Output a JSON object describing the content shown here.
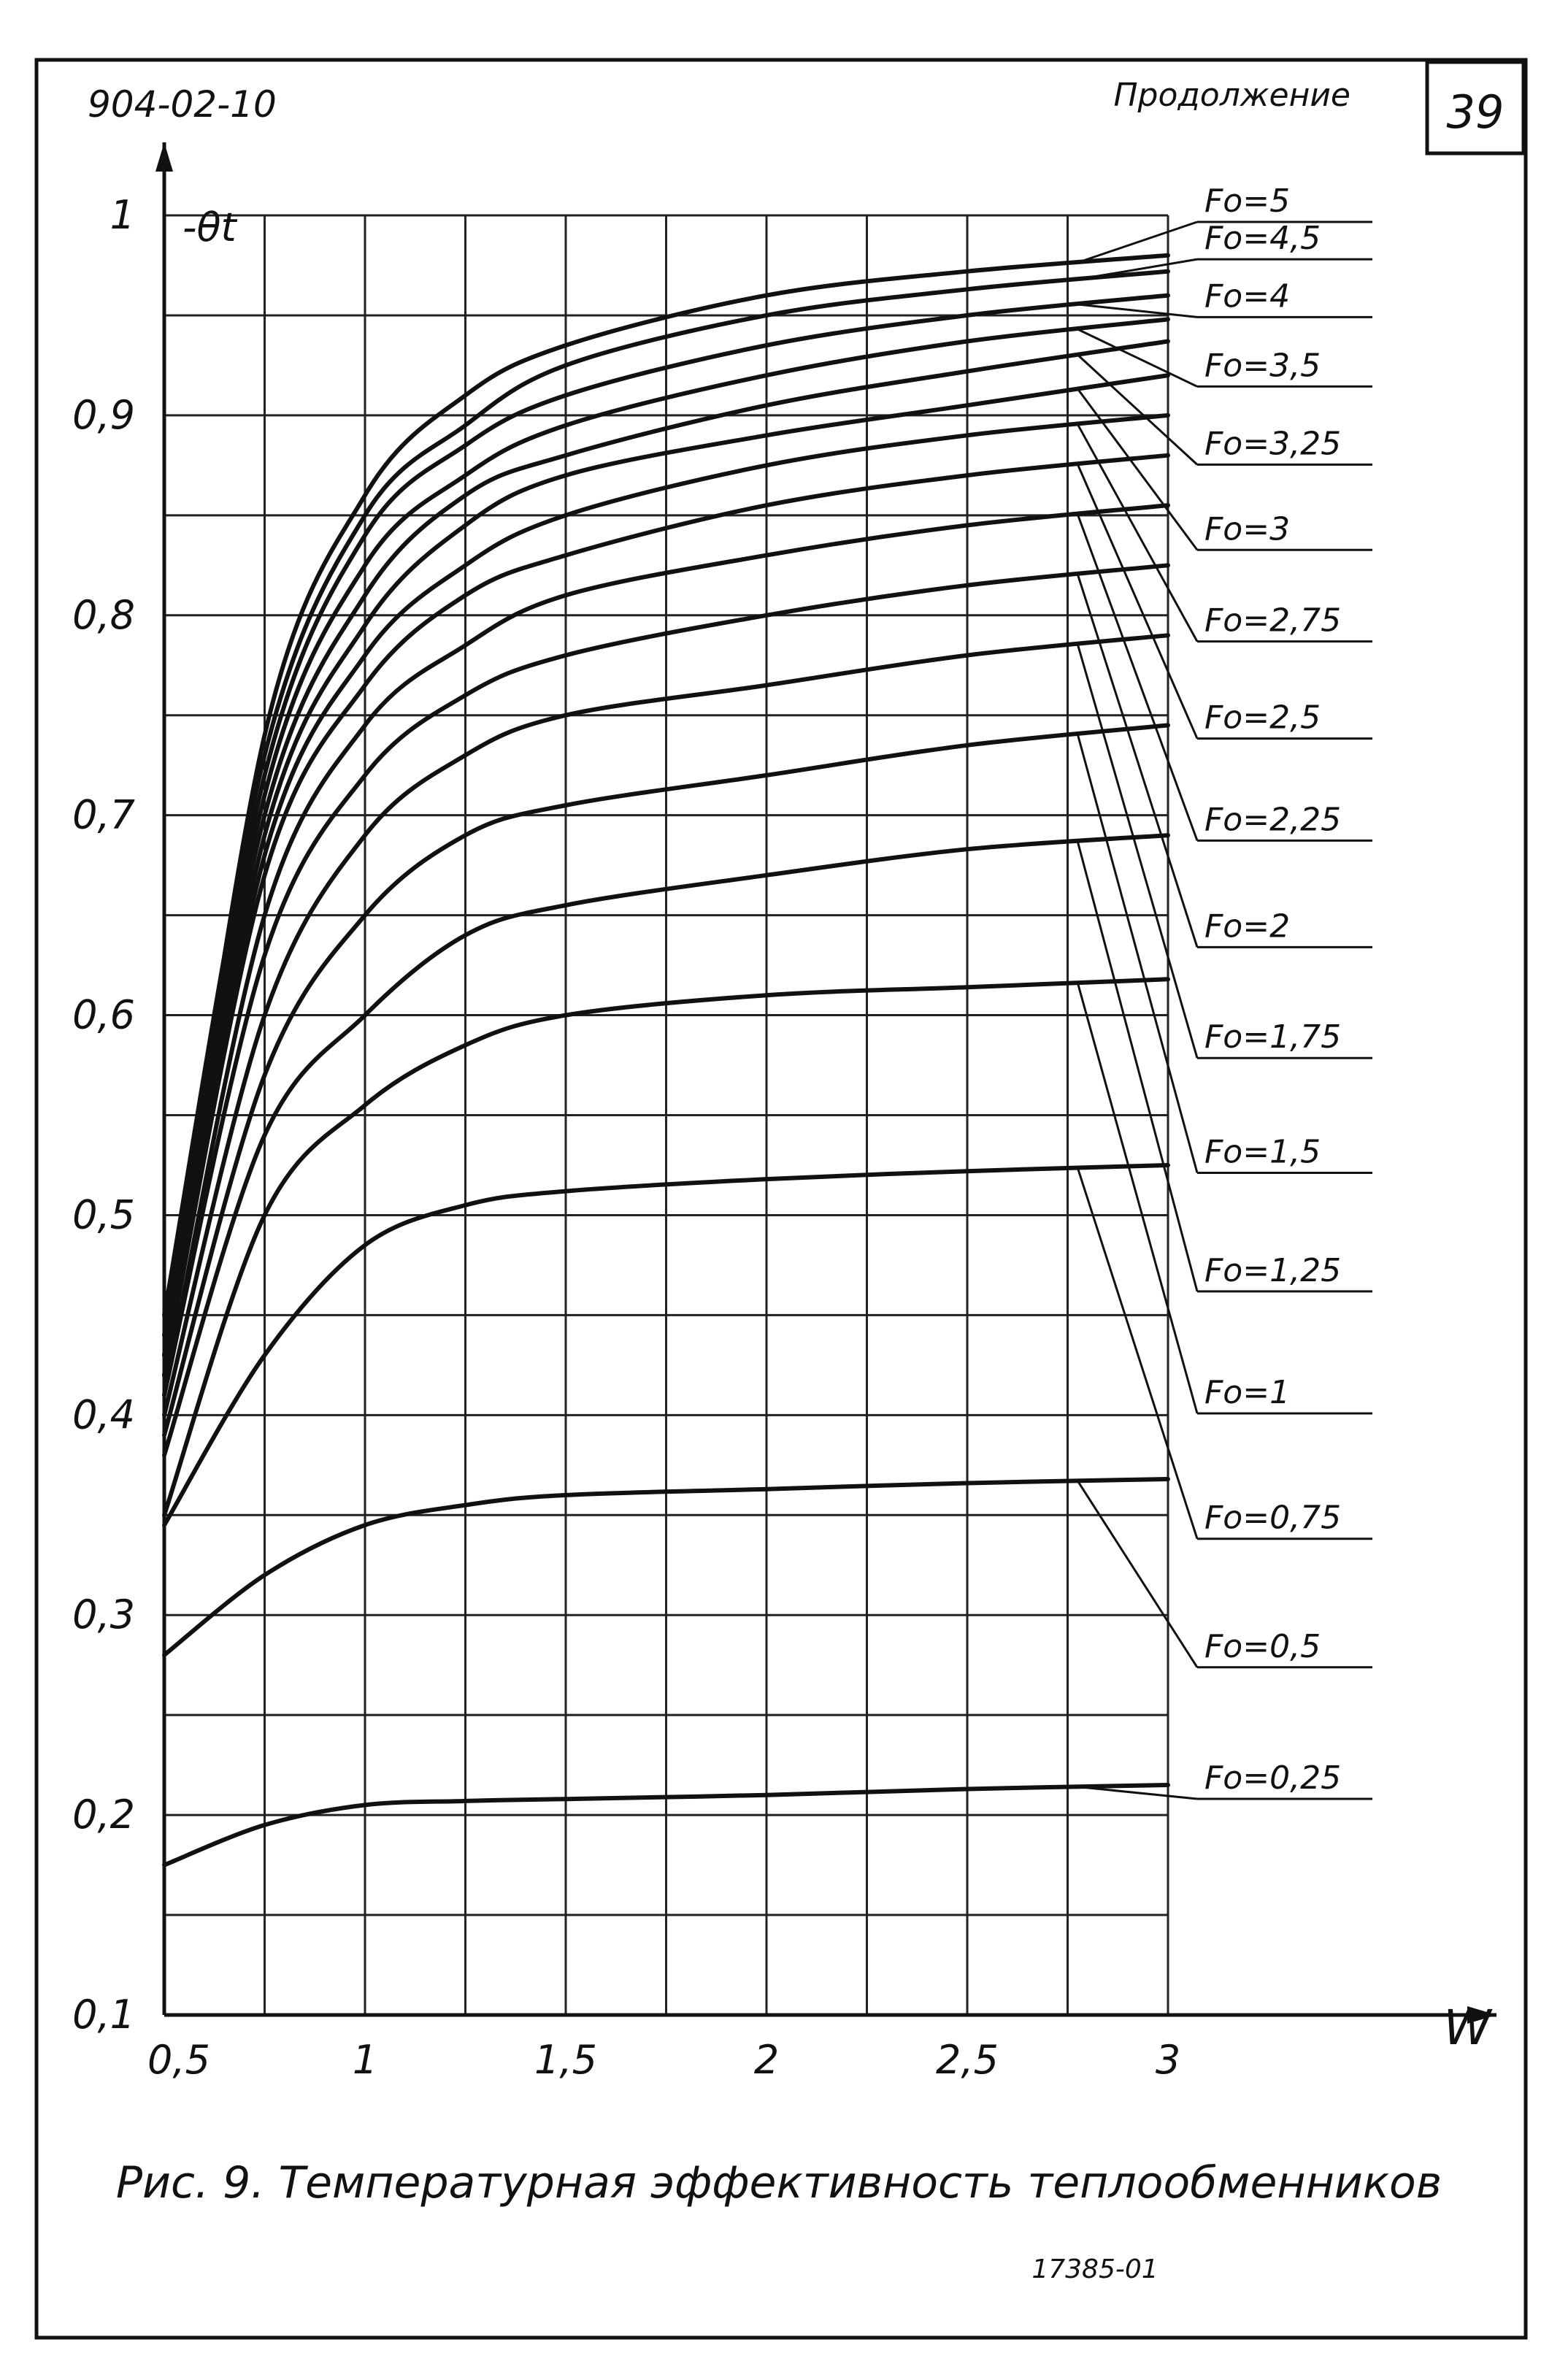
{
  "header": {
    "doc_number": "904-02-10",
    "continuation": "Продолжение",
    "page_number": "39"
  },
  "footer": {
    "caption": "Рис. 9. Температурная эффективность теплообменников",
    "inventory_number": "17385-01"
  },
  "chart_data": {
    "type": "line",
    "title": "",
    "xlabel": "W",
    "ylabel": "-θt",
    "xlim": [
      0.5,
      3
    ],
    "ylim": [
      0.1,
      1
    ],
    "grid": true,
    "legend": "right, labels with leader lines",
    "x_ticks": [
      {
        "value": 0.5,
        "label": "0,5"
      },
      {
        "value": 1,
        "label": "1"
      },
      {
        "value": 1.5,
        "label": "1,5"
      },
      {
        "value": 2,
        "label": "2"
      },
      {
        "value": 2.5,
        "label": "2,5"
      },
      {
        "value": 3,
        "label": "3"
      }
    ],
    "y_ticks": [
      {
        "value": 0.1,
        "label": "0,1"
      },
      {
        "value": 0.2,
        "label": "0,2"
      },
      {
        "value": 0.3,
        "label": "0,3"
      },
      {
        "value": 0.4,
        "label": "0,4"
      },
      {
        "value": 0.5,
        "label": "0,5"
      },
      {
        "value": 0.6,
        "label": "0,6"
      },
      {
        "value": 0.7,
        "label": "0,7"
      },
      {
        "value": 0.8,
        "label": "0,8"
      },
      {
        "value": 0.9,
        "label": "0,9"
      },
      {
        "value": 1,
        "label": "1"
      }
    ],
    "x": [
      0.5,
      0.75,
      1,
      1.25,
      1.5,
      2,
      2.5,
      3
    ],
    "series": [
      {
        "name": "Fo=5",
        "values": [
          0.43,
          0.74,
          0.86,
          0.91,
          0.935,
          0.96,
          0.972,
          0.98
        ]
      },
      {
        "name": "Fo=4,5",
        "values": [
          0.45,
          0.73,
          0.85,
          0.895,
          0.925,
          0.95,
          0.963,
          0.972
        ]
      },
      {
        "name": "Fo=4",
        "values": [
          0.44,
          0.72,
          0.84,
          0.885,
          0.91,
          0.935,
          0.95,
          0.96
        ]
      },
      {
        "name": "Fo=3,5",
        "values": [
          0.43,
          0.71,
          0.825,
          0.87,
          0.895,
          0.92,
          0.937,
          0.948
        ]
      },
      {
        "name": "Fo=3,25",
        "values": [
          0.43,
          0.7,
          0.81,
          0.86,
          0.88,
          0.905,
          0.922,
          0.937
        ]
      },
      {
        "name": "Fo=3",
        "values": [
          0.42,
          0.69,
          0.795,
          0.845,
          0.87,
          0.89,
          0.905,
          0.92
        ]
      },
      {
        "name": "Fo=2,75",
        "values": [
          0.42,
          0.68,
          0.78,
          0.825,
          0.85,
          0.875,
          0.89,
          0.9
        ]
      },
      {
        "name": "Fo=2,5",
        "values": [
          0.42,
          0.67,
          0.765,
          0.81,
          0.83,
          0.855,
          0.87,
          0.88
        ]
      },
      {
        "name": "Fo=2,25",
        "values": [
          0.41,
          0.65,
          0.745,
          0.785,
          0.81,
          0.83,
          0.845,
          0.855
        ]
      },
      {
        "name": "Fo=2",
        "values": [
          0.41,
          0.63,
          0.72,
          0.76,
          0.78,
          0.8,
          0.815,
          0.825
        ]
      },
      {
        "name": "Fo=1,75",
        "values": [
          0.4,
          0.6,
          0.69,
          0.73,
          0.75,
          0.765,
          0.78,
          0.79
        ]
      },
      {
        "name": "Fo=1,5",
        "values": [
          0.39,
          0.57,
          0.65,
          0.69,
          0.705,
          0.72,
          0.735,
          0.745
        ]
      },
      {
        "name": "Fo=1,25",
        "values": [
          0.38,
          0.54,
          0.6,
          0.64,
          0.655,
          0.67,
          0.683,
          0.69
        ]
      },
      {
        "name": "Fo=1",
        "values": [
          0.35,
          0.5,
          0.555,
          0.585,
          0.6,
          0.61,
          0.614,
          0.618
        ]
      },
      {
        "name": "Fo=0,75",
        "values": [
          0.345,
          0.43,
          0.485,
          0.505,
          0.512,
          0.518,
          0.522,
          0.525
        ]
      },
      {
        "name": "Fo=0,5",
        "values": [
          0.28,
          0.32,
          0.345,
          0.355,
          0.36,
          0.363,
          0.366,
          0.368
        ]
      },
      {
        "name": "Fo=0,25",
        "values": [
          0.175,
          0.195,
          0.205,
          0.207,
          0.208,
          0.21,
          0.213,
          0.215
        ]
      }
    ]
  }
}
